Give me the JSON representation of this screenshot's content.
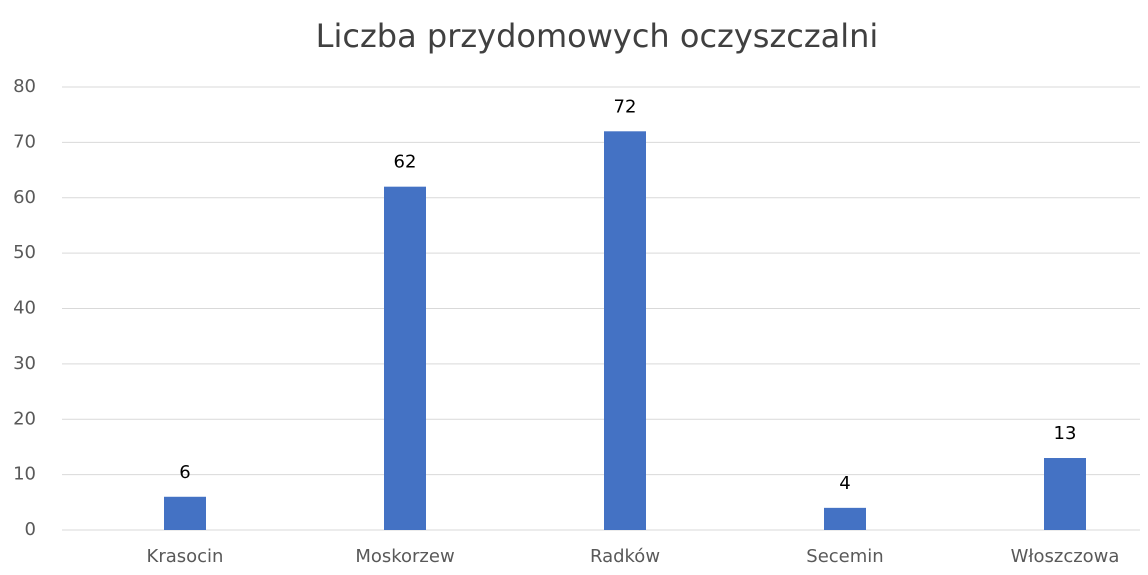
{
  "chart_data": {
    "type": "bar",
    "title": "Liczba przydomowych oczyszczalni",
    "categories": [
      "Krasocin",
      "Moskorzew",
      "Radków",
      "Secemin",
      "Włoszczowa"
    ],
    "values": [
      6,
      62,
      72,
      4,
      13
    ],
    "color": "#4472c4",
    "ylim": [
      0,
      80
    ],
    "yticks": [
      0,
      10,
      20,
      30,
      40,
      50,
      60,
      70,
      80
    ],
    "grid": true
  }
}
